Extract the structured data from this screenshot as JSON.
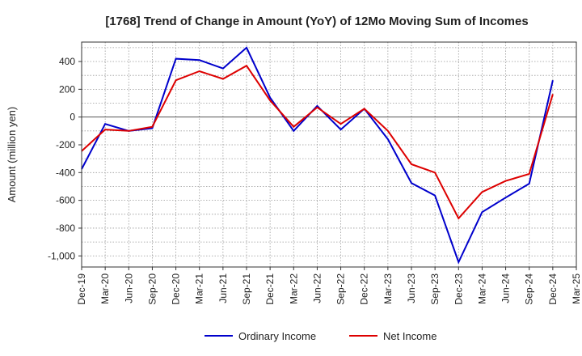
{
  "chart_data": {
    "type": "line",
    "title": "[1768]  Trend of Change in Amount (YoY) of 12Mo Moving Sum of Incomes",
    "ylabel": "Amount (million yen)",
    "xlabel": "",
    "x_ticks": [
      "Dec-19",
      "Mar-20",
      "Jun-20",
      "Sep-20",
      "Dec-20",
      "Mar-21",
      "Jun-21",
      "Sep-21",
      "Dec-21",
      "Mar-22",
      "Jun-22",
      "Sep-22",
      "Dec-22",
      "Mar-23",
      "Jun-23",
      "Sep-23",
      "Dec-23",
      "Mar-24",
      "Jun-24",
      "Sep-24",
      "Dec-24",
      "Mar-25"
    ],
    "y_ticks": [
      400,
      200,
      0,
      -200,
      -400,
      -600,
      -800,
      -1000
    ],
    "y_tick_labels": [
      "400",
      "200",
      "0",
      "-200",
      "-400",
      "-600",
      "-800",
      "-1,000"
    ],
    "ylim": [
      -1080,
      540
    ],
    "grid": true,
    "legend_position": "bottom",
    "series": [
      {
        "name": "Ordinary Income",
        "color": "#0000cc",
        "values": [
          -375,
          -50,
          -100,
          -80,
          420,
          410,
          350,
          500,
          140,
          -100,
          80,
          -90,
          60,
          -160,
          -475,
          -565,
          -1045,
          -685,
          -580,
          -480,
          265
        ]
      },
      {
        "name": "Net Income",
        "color": "#dd0000",
        "values": [
          -245,
          -90,
          -100,
          -70,
          265,
          330,
          275,
          370,
          120,
          -70,
          70,
          -50,
          60,
          -100,
          -340,
          -400,
          -730,
          -540,
          -460,
          -410,
          165
        ]
      }
    ]
  }
}
